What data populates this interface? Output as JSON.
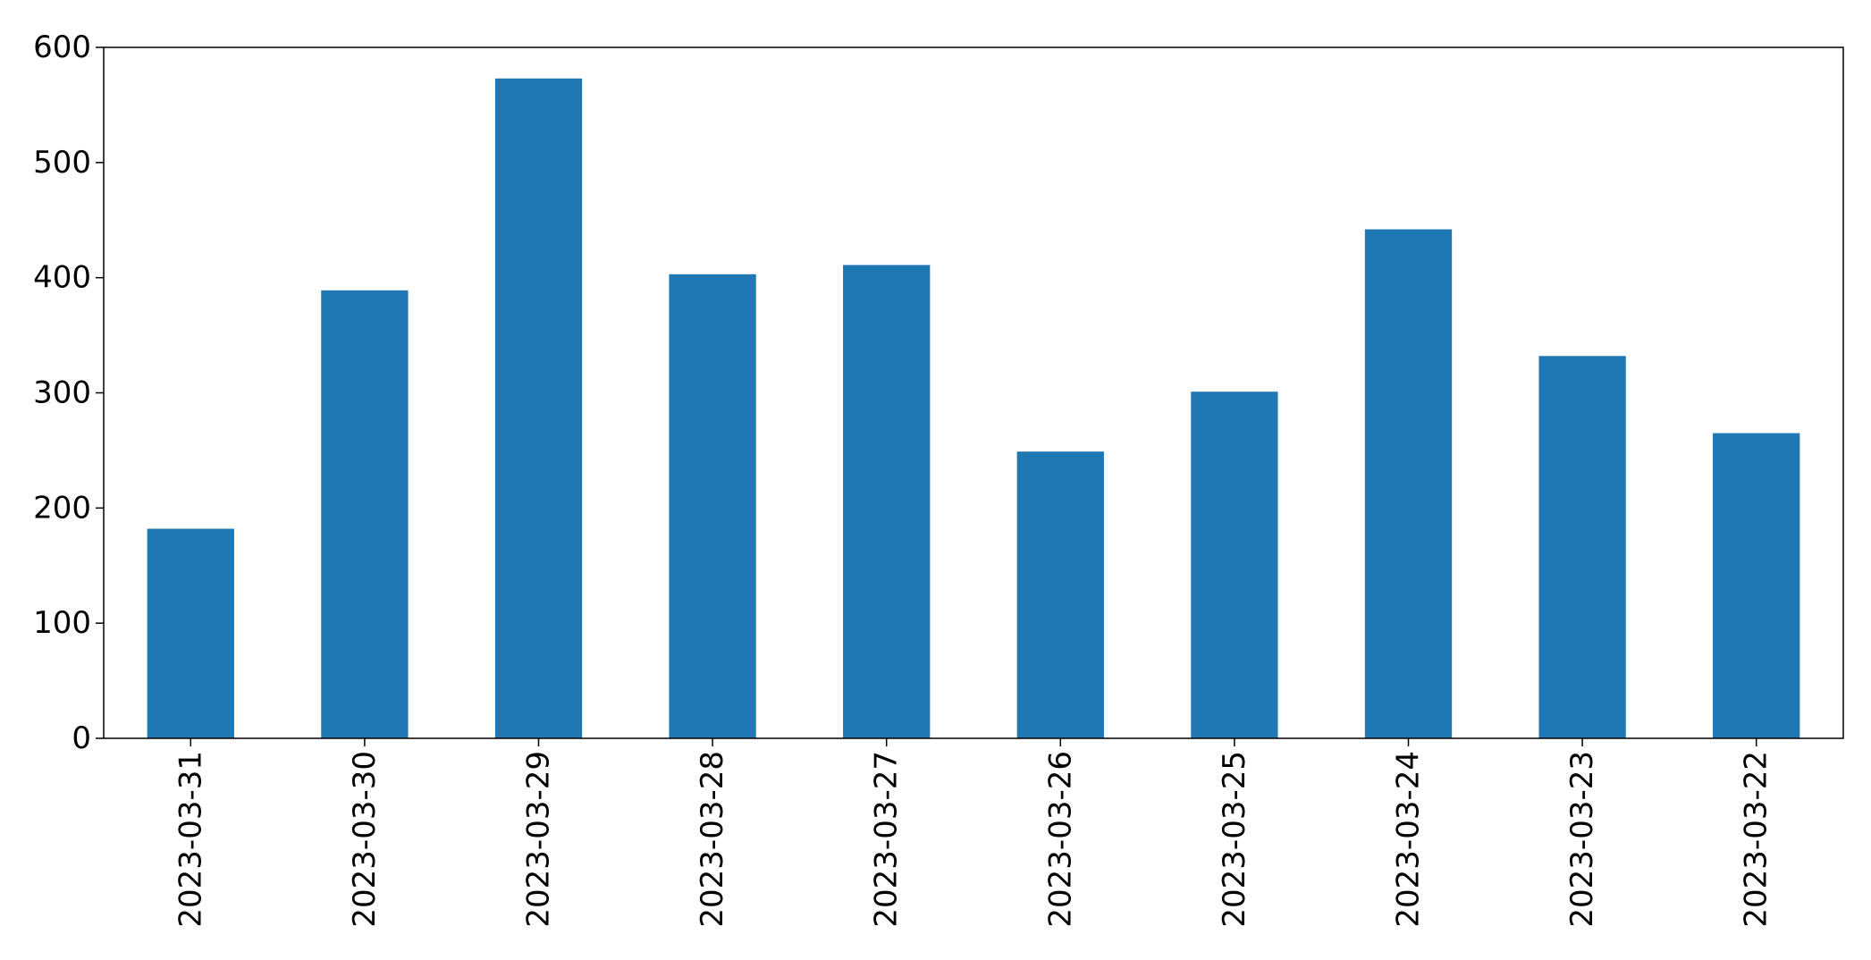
{
  "chart_data": {
    "type": "bar",
    "title": "",
    "xlabel": "",
    "ylabel": "",
    "categories": [
      "2023-03-31",
      "2023-03-30",
      "2023-03-29",
      "2023-03-28",
      "2023-03-27",
      "2023-03-26",
      "2023-03-25",
      "2023-03-24",
      "2023-03-23",
      "2023-03-22"
    ],
    "values": [
      182,
      389,
      573,
      403,
      411,
      249,
      301,
      442,
      332,
      265
    ],
    "ylim": [
      0,
      600
    ],
    "yticks": [
      0,
      100,
      200,
      300,
      400,
      500,
      600
    ],
    "bar_color": "#1f77b4",
    "grid": false,
    "legend": false
  }
}
